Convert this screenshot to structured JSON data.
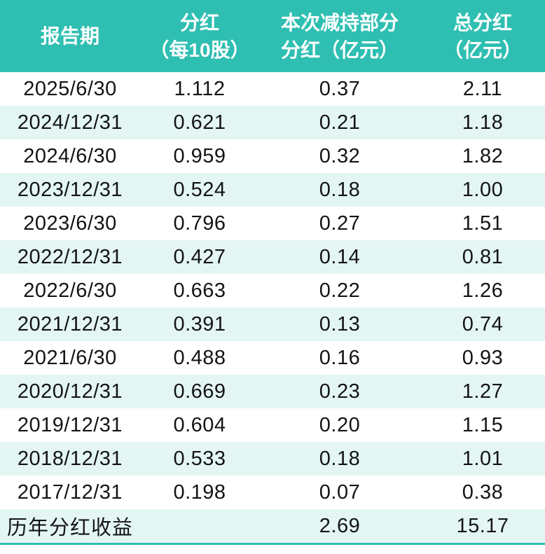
{
  "colors": {
    "header_bg": "#2FBFB2",
    "header_text": "#FFFFFF",
    "row_bg": "#FFFFFF",
    "row_alt_bg": "#E3F6F4",
    "body_text": "#141414",
    "bottom_border": "#2FBFB2"
  },
  "table": {
    "headers": [
      "报告期",
      "分红\n（每10股）",
      "本次减持部分\n分红（亿元）",
      "总分红\n（亿元）"
    ]
  },
  "chart_data": {
    "type": "table",
    "columns": [
      "报告期",
      "分红（每10股）",
      "本次减持部分分红（亿元）",
      "总分红（亿元）"
    ],
    "rows": [
      [
        "2025/6/30",
        "1.112",
        "0.37",
        "2.11"
      ],
      [
        "2024/12/31",
        "0.621",
        "0.21",
        "1.18"
      ],
      [
        "2024/6/30",
        "0.959",
        "0.32",
        "1.82"
      ],
      [
        "2023/12/31",
        "0.524",
        "0.18",
        "1.00"
      ],
      [
        "2023/6/30",
        "0.796",
        "0.27",
        "1.51"
      ],
      [
        "2022/12/31",
        "0.427",
        "0.14",
        "0.81"
      ],
      [
        "2022/6/30",
        "0.663",
        "0.22",
        "1.26"
      ],
      [
        "2021/12/31",
        "0.391",
        "0.13",
        "0.74"
      ],
      [
        "2021/6/30",
        "0.488",
        "0.16",
        "0.93"
      ],
      [
        "2020/12/31",
        "0.669",
        "0.23",
        "1.27"
      ],
      [
        "2019/12/31",
        "0.604",
        "0.20",
        "1.15"
      ],
      [
        "2018/12/31",
        "0.533",
        "0.18",
        "1.01"
      ],
      [
        "2017/12/31",
        "0.198",
        "0.07",
        "0.38"
      ]
    ],
    "summary_row": [
      "历年分红收益",
      "",
      "2.69",
      "15.17"
    ],
    "layout": {
      "zebra_striping": true,
      "header_lines": 2,
      "alignment": "center"
    }
  }
}
